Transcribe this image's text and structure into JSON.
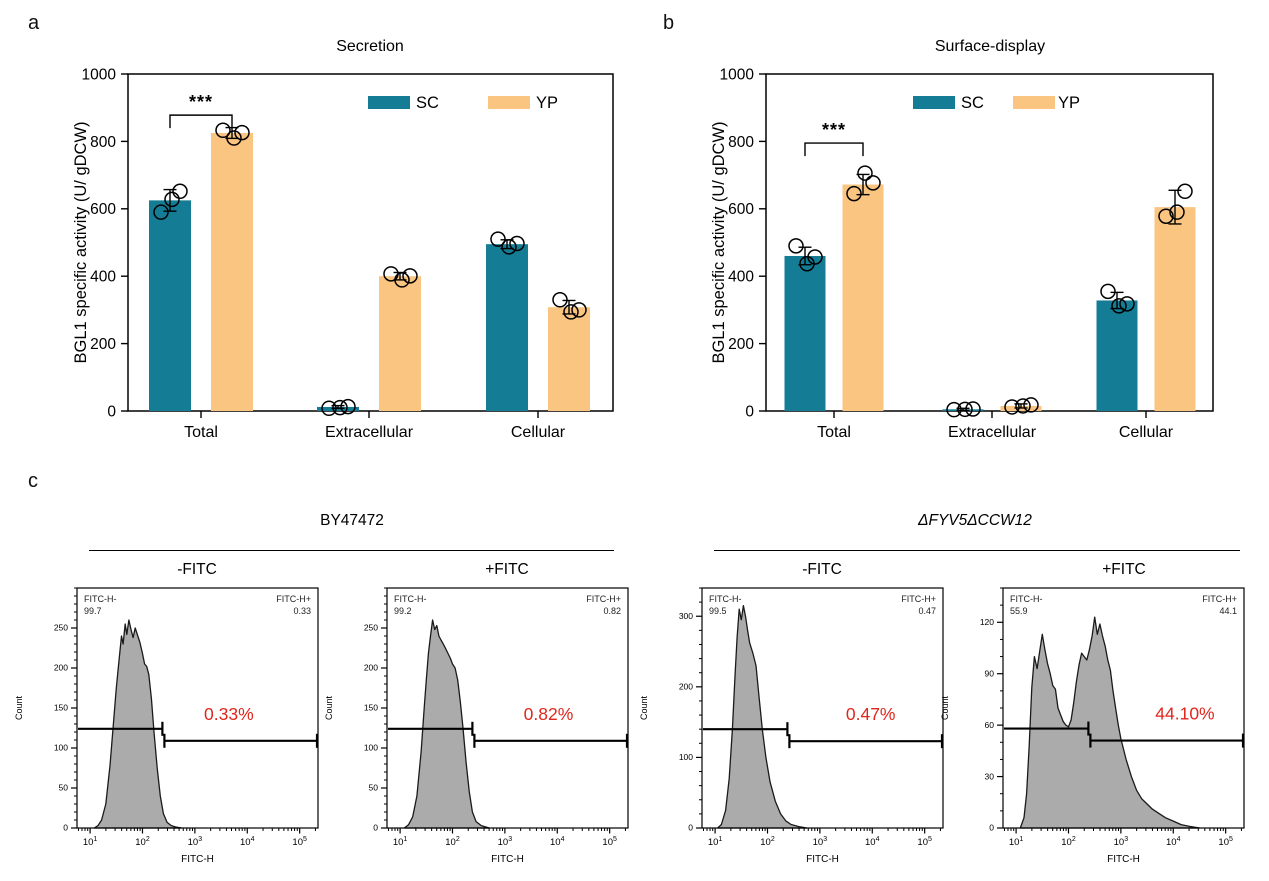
{
  "panels": {
    "a": {
      "letter": "a",
      "title": "Secretion"
    },
    "b": {
      "letter": "b",
      "title": "Surface-display"
    },
    "c": {
      "letter": "c",
      "groups": [
        {
          "title": "BY47472",
          "italic": false,
          "conditions": [
            "-FITC",
            "+FITC"
          ]
        },
        {
          "title": "ΔFYV5ΔCCW12",
          "italic": true,
          "conditions": [
            "-FITC",
            "+FITC"
          ]
        }
      ]
    }
  },
  "colors": {
    "sc": "#147c94",
    "yp": "#fac481",
    "hist_fill": "#ababab",
    "hist_stroke": "#1a1a1a",
    "red": "#e0261c",
    "axis": "#000000",
    "corner_text": "#222222"
  },
  "chart_data": [
    {
      "id": "secretion",
      "panel": "a",
      "type": "bar",
      "title": "Secretion",
      "ylabel": "BGL1 specific activity (U/ gDCW)",
      "ylim": [
        0,
        1000
      ],
      "yticks": [
        0,
        200,
        400,
        600,
        800,
        1000
      ],
      "categories": [
        "Total",
        "Extracellular",
        "Cellular"
      ],
      "legend": [
        "SC",
        "YP"
      ],
      "series": [
        {
          "name": "SC",
          "values": [
            625,
            12,
            495
          ],
          "errors": [
            32,
            4,
            13
          ],
          "points": [
            [
              590,
              628,
              652
            ],
            [
              8,
              10,
              13
            ],
            [
              510,
              487,
              497
            ]
          ]
        },
        {
          "name": "YP",
          "values": [
            825,
            400,
            308
          ],
          "errors": [
            16,
            11,
            20
          ],
          "points": [
            [
              833,
              810,
              826
            ],
            [
              407,
              389,
              401
            ],
            [
              330,
              294,
              300
            ]
          ]
        }
      ],
      "significance": {
        "label": "***",
        "category": "Total",
        "bracket_y": 878
      }
    },
    {
      "id": "surface-display",
      "panel": "b",
      "type": "bar",
      "title": "Surface-display",
      "ylabel": "BGL1 specific activity (U/ gDCW)",
      "ylim": [
        0,
        1000
      ],
      "yticks": [
        0,
        200,
        400,
        600,
        800,
        1000
      ],
      "categories": [
        "Total",
        "Extracellular",
        "Cellular"
      ],
      "legend": [
        "SC",
        "YP"
      ],
      "series": [
        {
          "name": "SC",
          "values": [
            460,
            5,
            328
          ],
          "errors": [
            26,
            3,
            24
          ],
          "points": [
            [
              490,
              437,
              457
            ],
            [
              4,
              5,
              6
            ],
            [
              355,
              312,
              318
            ]
          ]
        },
        {
          "name": "YP",
          "values": [
            672,
            15,
            605
          ],
          "errors": [
            30,
            6,
            50
          ],
          "points": [
            [
              645,
              706,
              677
            ],
            [
              12,
              15,
              18
            ],
            [
              578,
              590,
              652
            ]
          ]
        }
      ],
      "significance": {
        "label": "***",
        "category": "Total",
        "bracket_y": 795
      }
    },
    {
      "id": "hist-by47472-minus-fitc",
      "panel": "c",
      "type": "area-histogram",
      "strain": "BY47472",
      "condition": "-FITC",
      "xlabel": "FITC-H",
      "ylabel": "Count",
      "x_log_range": [
        0.75,
        5.35
      ],
      "x_decades": [
        1,
        2,
        3,
        4,
        5
      ],
      "ylim": [
        0,
        300
      ],
      "yticks": [
        0,
        50,
        100,
        150,
        200,
        250
      ],
      "y_minor_step": 10,
      "neg_label": "FITC-H-",
      "neg_value": "99.7",
      "pos_label": "FITC-H+",
      "pos_value": "0.33",
      "percent": "0.33%",
      "gate_split_log": 2.38,
      "gate_neg_count": 124,
      "gate_pos_count": 109,
      "curve": [
        [
          1.08,
          0
        ],
        [
          1.15,
          3
        ],
        [
          1.22,
          10
        ],
        [
          1.3,
          30
        ],
        [
          1.38,
          78
        ],
        [
          1.45,
          135
        ],
        [
          1.5,
          175
        ],
        [
          1.55,
          208
        ],
        [
          1.6,
          240
        ],
        [
          1.63,
          230
        ],
        [
          1.67,
          255
        ],
        [
          1.7,
          242
        ],
        [
          1.74,
          260
        ],
        [
          1.78,
          248
        ],
        [
          1.82,
          238
        ],
        [
          1.86,
          250
        ],
        [
          1.9,
          242
        ],
        [
          1.95,
          232
        ],
        [
          2.0,
          218
        ],
        [
          2.04,
          205
        ],
        [
          2.08,
          202
        ],
        [
          2.12,
          192
        ],
        [
          2.17,
          162
        ],
        [
          2.22,
          120
        ],
        [
          2.28,
          75
        ],
        [
          2.34,
          40
        ],
        [
          2.4,
          18
        ],
        [
          2.47,
          7
        ],
        [
          2.55,
          3
        ],
        [
          2.65,
          1
        ],
        [
          2.75,
          0
        ]
      ]
    },
    {
      "id": "hist-by47472-plus-fitc",
      "panel": "c",
      "type": "area-histogram",
      "strain": "BY47472",
      "condition": "+FITC",
      "xlabel": "FITC-H",
      "ylabel": "Count",
      "x_log_range": [
        0.75,
        5.35
      ],
      "x_decades": [
        1,
        2,
        3,
        4,
        5
      ],
      "ylim": [
        0,
        300
      ],
      "yticks": [
        0,
        50,
        100,
        150,
        200,
        250
      ],
      "y_minor_step": 10,
      "neg_label": "FITC-H-",
      "neg_value": "99.2",
      "pos_label": "FITC-H+",
      "pos_value": "0.82",
      "percent": "0.82%",
      "gate_split_log": 2.38,
      "gate_neg_count": 124,
      "gate_pos_count": 109,
      "curve": [
        [
          1.08,
          0
        ],
        [
          1.16,
          4
        ],
        [
          1.24,
          14
        ],
        [
          1.32,
          40
        ],
        [
          1.4,
          95
        ],
        [
          1.46,
          150
        ],
        [
          1.5,
          185
        ],
        [
          1.54,
          218
        ],
        [
          1.58,
          240
        ],
        [
          1.62,
          260
        ],
        [
          1.66,
          248
        ],
        [
          1.7,
          253
        ],
        [
          1.74,
          240
        ],
        [
          1.78,
          235
        ],
        [
          1.84,
          228
        ],
        [
          1.9,
          220
        ],
        [
          1.96,
          212
        ],
        [
          2.0,
          205
        ],
        [
          2.05,
          200
        ],
        [
          2.1,
          185
        ],
        [
          2.15,
          158
        ],
        [
          2.2,
          125
        ],
        [
          2.26,
          82
        ],
        [
          2.32,
          45
        ],
        [
          2.38,
          20
        ],
        [
          2.45,
          8
        ],
        [
          2.55,
          3
        ],
        [
          2.7,
          0
        ]
      ]
    },
    {
      "id": "hist-dfyv5dccw12-minus-fitc",
      "panel": "c",
      "type": "area-histogram",
      "strain": "ΔFYV5ΔCCW12",
      "condition": "-FITC",
      "xlabel": "FITC-H",
      "ylabel": "Count",
      "x_log_range": [
        0.75,
        5.35
      ],
      "x_decades": [
        1,
        2,
        3,
        4,
        5
      ],
      "ylim": [
        0,
        340
      ],
      "yticks": [
        0,
        100,
        200,
        300
      ],
      "y_minor_step": 20,
      "neg_label": "FITC-H-",
      "neg_value": "99.5",
      "pos_label": "FITC-H+",
      "pos_value": "0.47",
      "percent": "0.47%",
      "gate_split_log": 2.38,
      "gate_neg_count": 140,
      "gate_pos_count": 123,
      "curve": [
        [
          1.05,
          0
        ],
        [
          1.12,
          5
        ],
        [
          1.2,
          25
        ],
        [
          1.27,
          70
        ],
        [
          1.33,
          140
        ],
        [
          1.38,
          215
        ],
        [
          1.42,
          270
        ],
        [
          1.46,
          310
        ],
        [
          1.5,
          295
        ],
        [
          1.54,
          315
        ],
        [
          1.58,
          300
        ],
        [
          1.62,
          280
        ],
        [
          1.66,
          262
        ],
        [
          1.72,
          248
        ],
        [
          1.78,
          230
        ],
        [
          1.84,
          185
        ],
        [
          1.9,
          140
        ],
        [
          1.97,
          100
        ],
        [
          2.05,
          65
        ],
        [
          2.15,
          38
        ],
        [
          2.25,
          20
        ],
        [
          2.35,
          10
        ],
        [
          2.45,
          5
        ],
        [
          2.6,
          2
        ],
        [
          2.75,
          0
        ]
      ]
    },
    {
      "id": "hist-dfyv5dccw12-plus-fitc",
      "panel": "c",
      "type": "area-histogram",
      "strain": "ΔFYV5ΔCCW12",
      "condition": "+FITC",
      "xlabel": "FITC-H",
      "ylabel": "Count",
      "x_log_range": [
        0.75,
        5.35
      ],
      "x_decades": [
        1,
        2,
        3,
        4,
        5
      ],
      "ylim": [
        0,
        140
      ],
      "yticks": [
        0,
        30,
        60,
        90,
        120
      ],
      "y_minor_step": 10,
      "neg_label": "FITC-H-",
      "neg_value": "55.9",
      "pos_label": "FITC-H+",
      "pos_value": "44.1",
      "percent": "44.10%",
      "gate_split_log": 2.38,
      "gate_neg_count": 58,
      "gate_pos_count": 51,
      "curve": [
        [
          1.08,
          0
        ],
        [
          1.15,
          6
        ],
        [
          1.2,
          20
        ],
        [
          1.25,
          48
        ],
        [
          1.3,
          82
        ],
        [
          1.35,
          100
        ],
        [
          1.4,
          93
        ],
        [
          1.45,
          103
        ],
        [
          1.5,
          113
        ],
        [
          1.55,
          104
        ],
        [
          1.6,
          96
        ],
        [
          1.65,
          90
        ],
        [
          1.7,
          83
        ],
        [
          1.75,
          81
        ],
        [
          1.8,
          70
        ],
        [
          1.85,
          66
        ],
        [
          1.9,
          62
        ],
        [
          1.95,
          60
        ],
        [
          2.0,
          59
        ],
        [
          2.05,
          63
        ],
        [
          2.1,
          73
        ],
        [
          2.15,
          85
        ],
        [
          2.2,
          95
        ],
        [
          2.25,
          102
        ],
        [
          2.3,
          100
        ],
        [
          2.35,
          98
        ],
        [
          2.4,
          104
        ],
        [
          2.45,
          112
        ],
        [
          2.5,
          123
        ],
        [
          2.55,
          113
        ],
        [
          2.6,
          119
        ],
        [
          2.65,
          112
        ],
        [
          2.7,
          106
        ],
        [
          2.75,
          98
        ],
        [
          2.8,
          92
        ],
        [
          2.85,
          80
        ],
        [
          2.9,
          70
        ],
        [
          2.95,
          60
        ],
        [
          3.0,
          52
        ],
        [
          3.1,
          40
        ],
        [
          3.2,
          30
        ],
        [
          3.3,
          22
        ],
        [
          3.4,
          17
        ],
        [
          3.5,
          14
        ],
        [
          3.6,
          11
        ],
        [
          3.7,
          9
        ],
        [
          3.85,
          6
        ],
        [
          4.0,
          4
        ],
        [
          4.15,
          2
        ],
        [
          4.3,
          1
        ],
        [
          4.5,
          0
        ]
      ]
    }
  ]
}
